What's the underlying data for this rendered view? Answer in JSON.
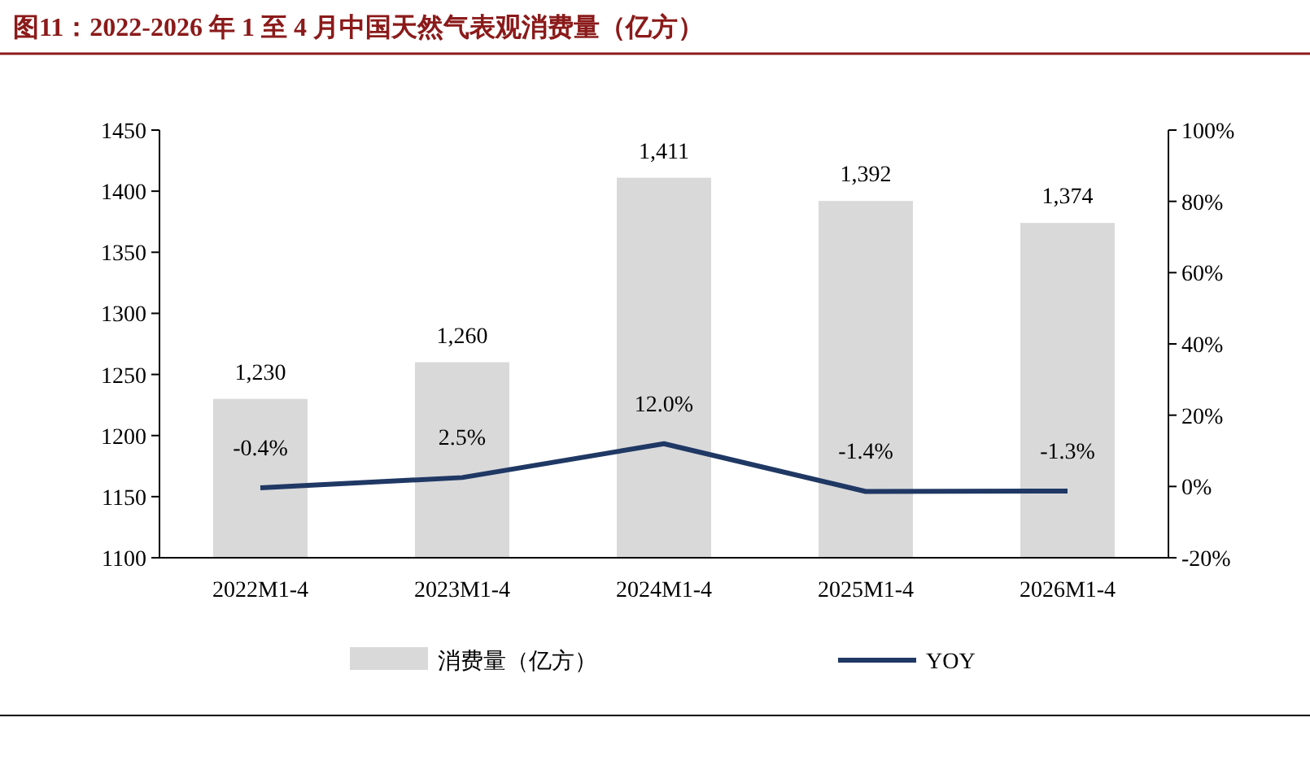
{
  "chart_data": {
    "type": "bar",
    "title": "图11：2022-2026 年 1 至 4 月中国天然气表观消费量（亿方）",
    "categories": [
      "2022M1-4",
      "2023M1-4",
      "2024M1-4",
      "2025M1-4",
      "2026M1-4"
    ],
    "series": [
      {
        "name": "消费量（亿方）",
        "color": "#d9d9d9",
        "values": [
          1230,
          1260,
          1411,
          1392,
          1374
        ],
        "value_labels": [
          "1,230",
          "1,260",
          "1,411",
          "1,392",
          "1,374"
        ]
      },
      {
        "name": "YOY",
        "type": "line",
        "axis": "y2",
        "color": "#1f3864",
        "values": [
          -0.4,
          2.5,
          12.0,
          -1.4,
          -1.3
        ],
        "value_labels": [
          "-0.4%",
          "2.5%",
          "12.0%",
          "-1.4%",
          "-1.3%"
        ]
      }
    ],
    "ylim": [
      1100,
      1450
    ],
    "yticks": [
      1100,
      1150,
      1200,
      1250,
      1300,
      1350,
      1400,
      1450
    ],
    "y2lim": [
      -20,
      100
    ],
    "y2ticks": [
      {
        "value": -20,
        "label": "-20%"
      },
      {
        "value": 0,
        "label": "0%"
      },
      {
        "value": 20,
        "label": "20%"
      },
      {
        "value": 40,
        "label": "40%"
      },
      {
        "value": 60,
        "label": "60%"
      },
      {
        "value": 80,
        "label": "80%"
      },
      {
        "value": 100,
        "label": "100%"
      }
    ],
    "grid": false,
    "legend": "bottom"
  }
}
